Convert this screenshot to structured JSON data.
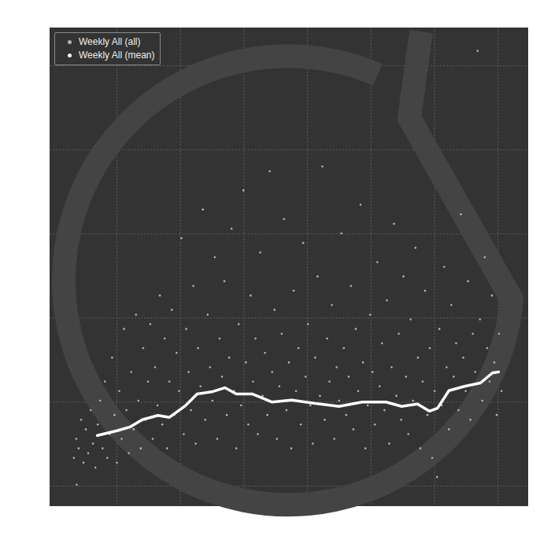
{
  "chart_data": {
    "type": "scatter",
    "xlim": [
      0,
      100
    ],
    "ylim": [
      0,
      100
    ],
    "xticks": [
      14,
      27.3,
      40.6,
      53.9,
      67.2,
      80.5,
      93.8
    ],
    "yticks": [
      4.1,
      21.7,
      39.3,
      56.9,
      74.5,
      92.1
    ],
    "grid": true,
    "tick_labels": false,
    "legend": "top-left",
    "series": [
      {
        "name": "Weekly All (all)",
        "color": "#b4b4b4",
        "type": "scatter",
        "marker": "circle",
        "x": [
          5.6,
          5,
          5.5,
          6,
          6.5,
          7,
          7.5,
          8,
          8.5,
          9,
          9.5,
          10,
          10.5,
          11,
          11.5,
          12,
          12.5,
          13,
          13.5,
          14,
          14.5,
          15,
          15.5,
          16,
          16.5,
          17,
          17.5,
          18,
          18.5,
          19,
          19.5,
          20,
          20.5,
          21,
          21.5,
          22,
          22.5,
          23,
          23.5,
          24,
          24.5,
          25,
          25.5,
          26,
          26.5,
          27,
          27.5,
          28,
          28.5,
          29,
          29.5,
          30,
          30.5,
          31,
          31.5,
          32,
          32.5,
          33,
          33.5,
          34,
          34.5,
          35,
          35.5,
          36,
          36.5,
          37,
          37.5,
          38,
          38.5,
          39,
          39.5,
          40,
          40.5,
          41,
          41.5,
          42,
          42.5,
          43,
          43.5,
          44,
          44.5,
          45,
          45.5,
          46,
          46.5,
          47,
          47.5,
          48,
          48.5,
          49,
          49.5,
          50,
          50.5,
          51,
          51.5,
          52,
          52.5,
          53,
          53.5,
          54,
          54.5,
          55,
          55.5,
          56,
          56.5,
          57,
          57.5,
          58,
          58.5,
          59,
          59.5,
          60,
          60.5,
          61,
          61.5,
          62,
          62.5,
          63,
          63.5,
          64,
          64.5,
          65,
          65.5,
          66,
          66.5,
          67,
          67.5,
          68,
          68.5,
          69,
          69.5,
          70,
          70.5,
          71,
          71.5,
          72,
          72.5,
          73,
          73.5,
          74,
          74.5,
          75,
          75.5,
          76,
          76.5,
          77,
          77.5,
          78,
          78.5,
          79,
          79.5,
          80,
          80.5,
          81,
          81.5,
          82,
          82.5,
          83,
          83.5,
          84,
          84.5,
          85,
          85.5,
          86,
          86.5,
          87,
          87.5,
          88,
          88.5,
          89,
          89.5,
          90,
          90.5,
          91,
          91.5,
          92,
          92.5,
          93,
          93.5,
          94,
          94.5
        ],
        "values": [
          4.4,
          10,
          14,
          12,
          18,
          9,
          16,
          11,
          20,
          13,
          8,
          17,
          22,
          12,
          26,
          10,
          15,
          31,
          19,
          9,
          24,
          14,
          37,
          20,
          11,
          28,
          16,
          40,
          22,
          12,
          33,
          18,
          26,
          38,
          14,
          29,
          21,
          44,
          17,
          35,
          12,
          26,
          41,
          19,
          32,
          24,
          56,
          15,
          37,
          28,
          20,
          46,
          13,
          33,
          25,
          62,
          18,
          40,
          29,
          22,
          52,
          14,
          35,
          27,
          47,
          19,
          31,
          58,
          24,
          12,
          38,
          21,
          66,
          30,
          17,
          44,
          26,
          35,
          15,
          53,
          23,
          32,
          19,
          70,
          28,
          41,
          14,
          25,
          36,
          60,
          20,
          30,
          12,
          45,
          24,
          33,
          17,
          55,
          27,
          38,
          21,
          13,
          31,
          48,
          23,
          71,
          18,
          35,
          26,
          42,
          14,
          29,
          22,
          57,
          33,
          19,
          27,
          46,
          16,
          37,
          24,
          63,
          30,
          12,
          21,
          40,
          28,
          17,
          51,
          25,
          34,
          20,
          43,
          13,
          29,
          59,
          23,
          36,
          18,
          48,
          27,
          15,
          39,
          22,
          54,
          31,
          12,
          26,
          45,
          19,
          33,
          10,
          24,
          6,
          37,
          21,
          50,
          29,
          16,
          42,
          27,
          34,
          20,
          61,
          31,
          24,
          47,
          18,
          36,
          28,
          95.2,
          39,
          22,
          52,
          33,
          26,
          44,
          30,
          19,
          36,
          24
        ]
      },
      {
        "name": "Weekly All (mean)",
        "color": "#ffffff",
        "type": "line",
        "line_style": "solid",
        "x": [
          9.9,
          14.0,
          16.8,
          19.3,
          22.6,
          25.0,
          28.3,
          30.8,
          34.1,
          36.6,
          39.0,
          42.3,
          46.5,
          50.6,
          55.5,
          60.5,
          65.4,
          70.3,
          73.6,
          76.9,
          79.4,
          81.1,
          83.5,
          86.8,
          90.1,
          92.6,
          93.9
        ],
        "values": [
          14.7,
          15.7,
          16.5,
          18.0,
          18.9,
          18.5,
          20.9,
          23.4,
          23.9,
          24.7,
          23.4,
          23.4,
          21.7,
          22.1,
          21.4,
          20.8,
          21.7,
          21.7,
          20.8,
          21.3,
          19.8,
          20.4,
          24.1,
          25.0,
          25.7,
          27.8,
          28.0
        ]
      }
    ]
  }
}
